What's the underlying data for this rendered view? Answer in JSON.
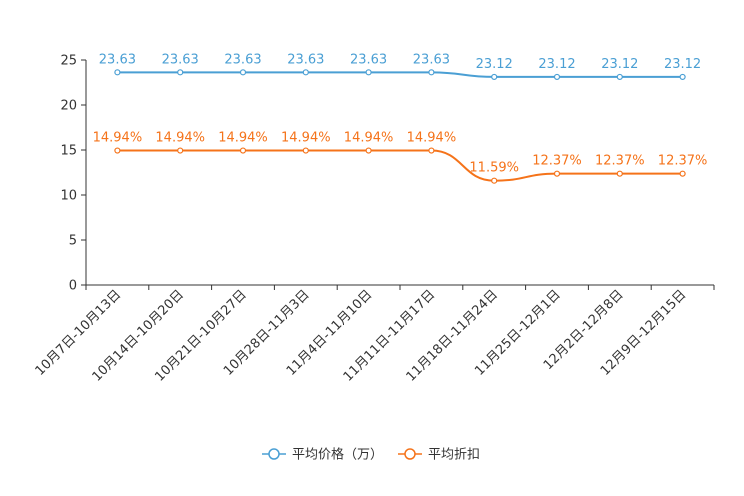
{
  "chart_data": {
    "type": "line",
    "categories": [
      "10月7日-10月13日",
      "10月14日-10月20日",
      "10月21日-10月27日",
      "10月28日-11月3日",
      "11月4日-11月10日",
      "11月11日-11月17日",
      "11月18日-11月24日",
      "11月25日-12月1日",
      "12月2日-12月8日",
      "12月9日-12月15日"
    ],
    "series": [
      {
        "name": "平均价格（万）",
        "values": [
          23.63,
          23.63,
          23.63,
          23.63,
          23.63,
          23.63,
          23.12,
          23.12,
          23.12,
          23.12
        ],
        "labels": [
          "23.63",
          "23.63",
          "23.63",
          "23.63",
          "23.63",
          "23.63",
          "23.12",
          "23.12",
          "23.12",
          "23.12"
        ],
        "color": "#4a9fd4"
      },
      {
        "name": "平均折扣",
        "values": [
          14.94,
          14.94,
          14.94,
          14.94,
          14.94,
          14.94,
          11.59,
          12.37,
          12.37,
          12.37
        ],
        "labels": [
          "14.94%",
          "14.94%",
          "14.94%",
          "14.94%",
          "14.94%",
          "14.94%",
          "11.59%",
          "12.37%",
          "12.37%",
          "12.37%"
        ],
        "color": "#f5731a"
      }
    ],
    "yticks": [
      0,
      5,
      10,
      15,
      20,
      25
    ],
    "ylim": [
      0,
      25
    ],
    "title": "",
    "xlabel": "",
    "ylabel": "",
    "legend_position": "bottom-center"
  }
}
